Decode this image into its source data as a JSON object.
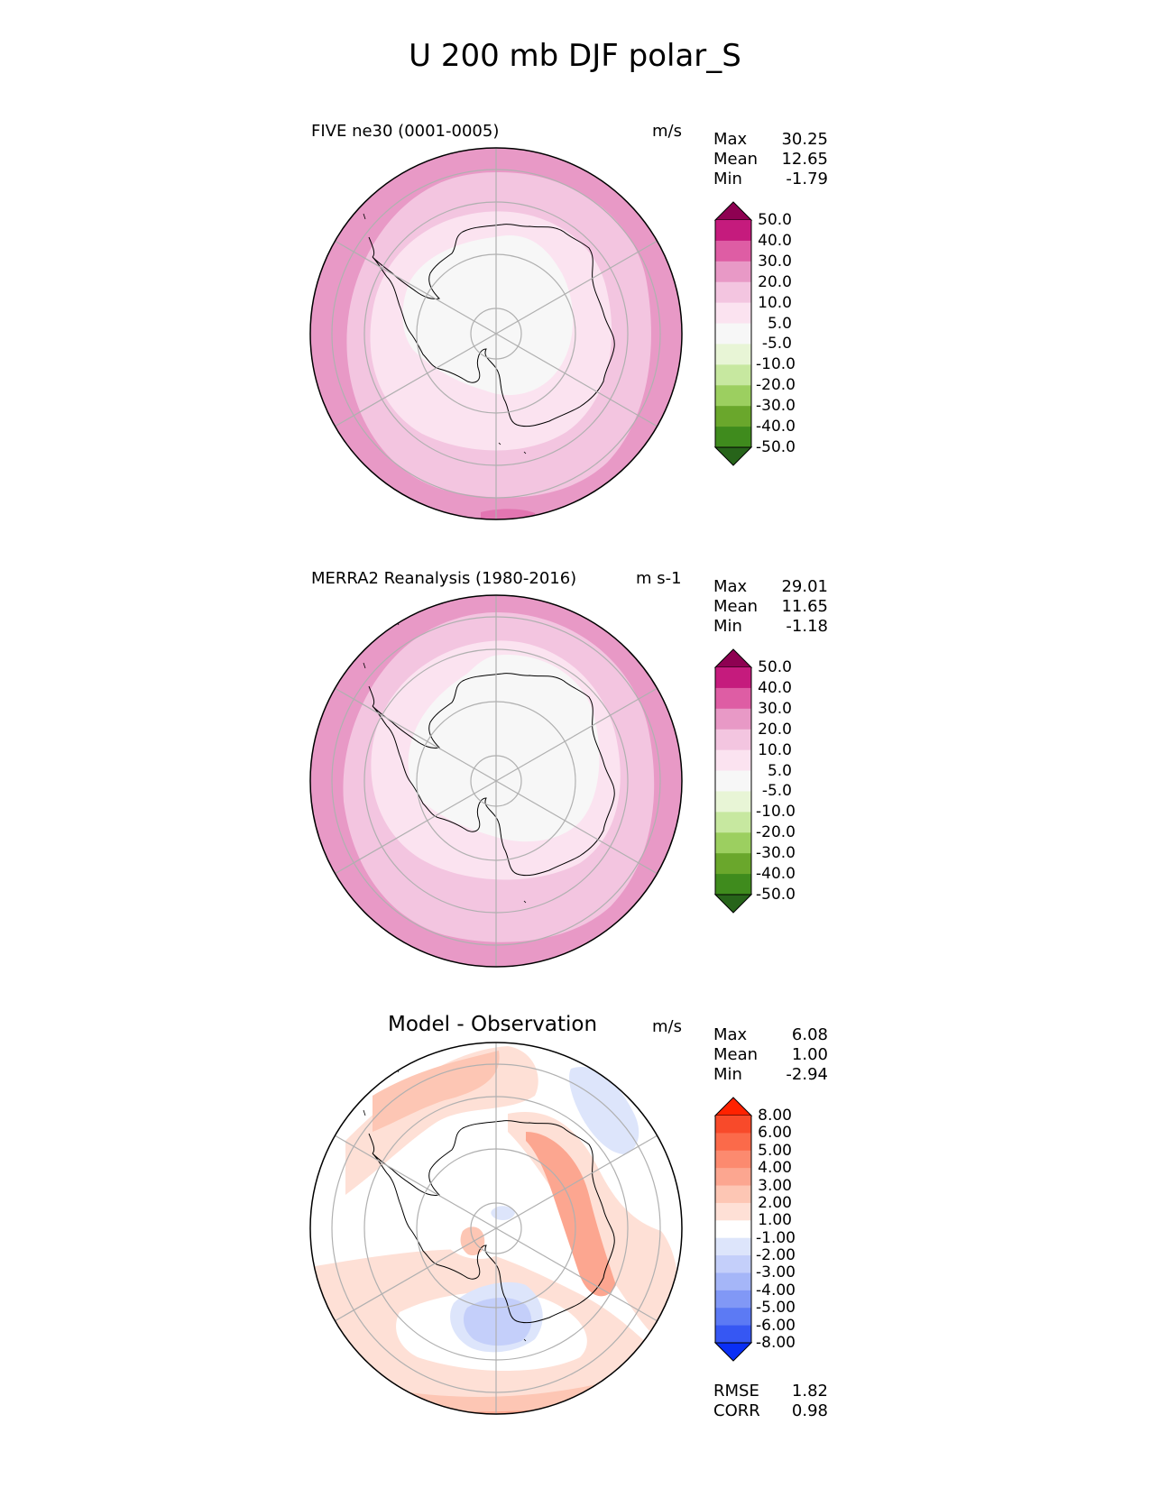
{
  "title": "U 200 mb DJF polar_S",
  "chart_data": [
    {
      "type": "heatmap",
      "projection": "south polar stereographic",
      "title": "FIVE ne30 (0001-0005)",
      "units": "m/s",
      "stats": {
        "Max": "30.25",
        "Mean": "12.65",
        "Min": "-1.79"
      },
      "stat_labels": [
        "Max",
        "Mean",
        "Min"
      ],
      "stat_values": [
        "30.25",
        "12.65",
        "-1.79"
      ],
      "colorbar": {
        "levels": [
          "50.0",
          "40.0",
          "30.0",
          "20.0",
          "10.0",
          "5.0",
          "-5.0",
          "-10.0",
          "-20.0",
          "-30.0",
          "-40.0",
          "-50.0"
        ],
        "colors": [
          "#8e0152",
          "#c51b7d",
          "#de5da4",
          "#e899c6",
          "#f3c5e0",
          "#fbe3f0",
          "#f7f7f7",
          "#e8f5d6",
          "#c7e8a0",
          "#9ccf60",
          "#6aa72c",
          "#3f8b1d",
          "#27641a"
        ]
      },
      "field_bands": [
        {
          "value": "20-30",
          "color": "#e899c6"
        },
        {
          "value": "10-20",
          "color": "#f3c5e0"
        },
        {
          "value": "5-10",
          "color": "#fbe3f0"
        },
        {
          "value": "-5-5",
          "color": "#f7f7f7"
        }
      ]
    },
    {
      "type": "heatmap",
      "projection": "south polar stereographic",
      "title": "MERRA2 Reanalysis (1980-2016)",
      "units": "m s-1",
      "stats": {
        "Max": "29.01",
        "Mean": "11.65",
        "Min": "-1.18"
      },
      "stat_labels": [
        "Max",
        "Mean",
        "Min"
      ],
      "stat_values": [
        "29.01",
        "11.65",
        "-1.18"
      ],
      "colorbar": {
        "levels": [
          "50.0",
          "40.0",
          "30.0",
          "20.0",
          "10.0",
          "5.0",
          "-5.0",
          "-10.0",
          "-20.0",
          "-30.0",
          "-40.0",
          "-50.0"
        ],
        "colors": [
          "#8e0152",
          "#c51b7d",
          "#de5da4",
          "#e899c6",
          "#f3c5e0",
          "#fbe3f0",
          "#f7f7f7",
          "#e8f5d6",
          "#c7e8a0",
          "#9ccf60",
          "#6aa72c",
          "#3f8b1d",
          "#27641a"
        ]
      },
      "field_bands": [
        {
          "value": "20-30",
          "color": "#e899c6"
        },
        {
          "value": "10-20",
          "color": "#f3c5e0"
        },
        {
          "value": "5-10",
          "color": "#fbe3f0"
        },
        {
          "value": "-5-5",
          "color": "#f7f7f7"
        }
      ]
    },
    {
      "type": "heatmap",
      "projection": "south polar stereographic",
      "title": "Model - Observation",
      "units": "m/s",
      "stats": {
        "Max": "6.08",
        "Mean": "1.00",
        "Min": "-2.94"
      },
      "stat_labels": [
        "Max",
        "Mean",
        "Min"
      ],
      "stat_values": [
        "6.08",
        "1.00",
        "-2.94"
      ],
      "metrics": {
        "RMSE": "1.82",
        "CORR": "0.98"
      },
      "metric_labels": [
        "RMSE",
        "CORR"
      ],
      "metric_values": [
        "1.82",
        "0.98"
      ],
      "colorbar": {
        "levels": [
          "8.00",
          "6.00",
          "5.00",
          "4.00",
          "3.00",
          "2.00",
          "1.00",
          "-1.00",
          "-2.00",
          "-3.00",
          "-4.00",
          "-5.00",
          "-6.00",
          "-8.00"
        ],
        "colors": [
          "#ff2200",
          "#f84a2a",
          "#fb6a4a",
          "#fc8a6f",
          "#fca690",
          "#fdc6b4",
          "#fee0d6",
          "#ffffff",
          "#dde5fb",
          "#c4cffa",
          "#a5b6f8",
          "#8198f6",
          "#5c7af4",
          "#3657f3",
          "#0a2ff5"
        ]
      },
      "field_colors": {
        "pos1": "#fee0d6",
        "pos2": "#fdc6b4",
        "pos3": "#fca690",
        "neg1": "#dde5fb",
        "neg2": "#c4cffa"
      }
    }
  ]
}
